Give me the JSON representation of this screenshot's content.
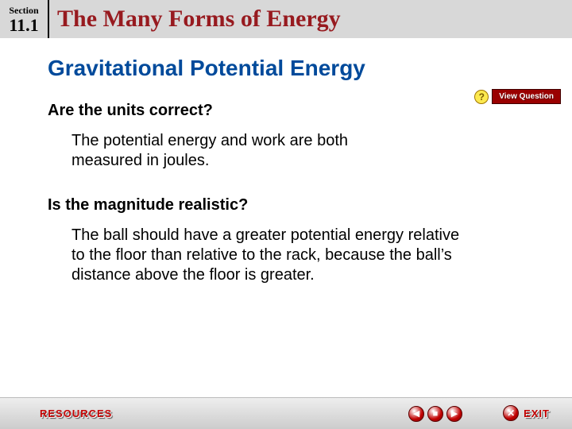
{
  "header": {
    "section_label": "Section",
    "section_number": "11.1",
    "title": "The Many Forms of Energy"
  },
  "content": {
    "subtitle": "Gravitational Potential Energy",
    "q1": "Are the units correct?",
    "a1": "The potential energy and work are both measured in joules.",
    "q2": "Is the magnitude realistic?",
    "a2": "The ball should have a greater potential energy relative to the floor than relative to the rack, because the ball’s distance above the floor is greater."
  },
  "view_question": {
    "icon_text": "?",
    "label": "View Question"
  },
  "footer": {
    "resources": "RESOURCES",
    "exit": "EXIT",
    "prev_glyph": "◀",
    "menu_glyph": "■",
    "next_glyph": "▶",
    "exit_glyph": "✕"
  },
  "colors": {
    "title_color": "#971a1f",
    "subtitle_color": "#004a9b",
    "header_bg": "#d8d8d8",
    "red_button": "#c10000"
  }
}
